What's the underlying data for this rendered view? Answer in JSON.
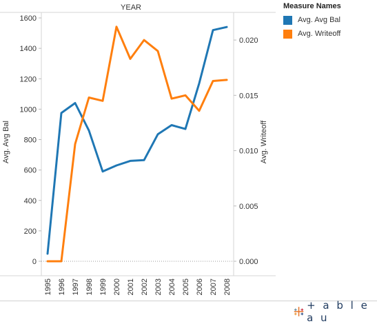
{
  "logo": {
    "text": "+ a b l e a u",
    "name": "tableau"
  },
  "legend": {
    "title": "Measure Names",
    "items": [
      {
        "label": "Avg. Avg Bal",
        "color": "#1f77b4"
      },
      {
        "label": "Avg. Writeoff",
        "color": "#ff7f0e"
      }
    ]
  },
  "chart_data": {
    "type": "line",
    "title": "YEAR",
    "x": [
      "1995",
      "1996",
      "1997",
      "1998",
      "1999",
      "2000",
      "2001",
      "2002",
      "2003",
      "2004",
      "2005",
      "2006",
      "2007",
      "2008"
    ],
    "ylabel": "Avg. Avg Bal",
    "y2label": "Avg. Writeoff",
    "ylim": [
      0,
      1600
    ],
    "y2lim": [
      0,
      0.022
    ],
    "yticks": [
      "0",
      "200",
      "400",
      "600",
      "800",
      "1000",
      "1200",
      "1400",
      "1600"
    ],
    "y2ticks": [
      "0.000",
      "0.005",
      "0.010",
      "0.015",
      "0.020"
    ],
    "grid": false,
    "legend_position": "right",
    "series": [
      {
        "name": "Avg. Avg Bal",
        "axis": "left",
        "color": "#1f77b4",
        "values": [
          50,
          975,
          1040,
          860,
          590,
          630,
          660,
          665,
          835,
          895,
          870,
          1170,
          1520,
          1540
        ]
      },
      {
        "name": "Avg. Writeoff",
        "axis": "right",
        "color": "#ff7f0e",
        "values": [
          0.0,
          0.0,
          0.0106,
          0.0148,
          0.0145,
          0.0212,
          0.0183,
          0.02,
          0.019,
          0.0147,
          0.015,
          0.0136,
          0.0163,
          0.0164
        ]
      }
    ]
  }
}
